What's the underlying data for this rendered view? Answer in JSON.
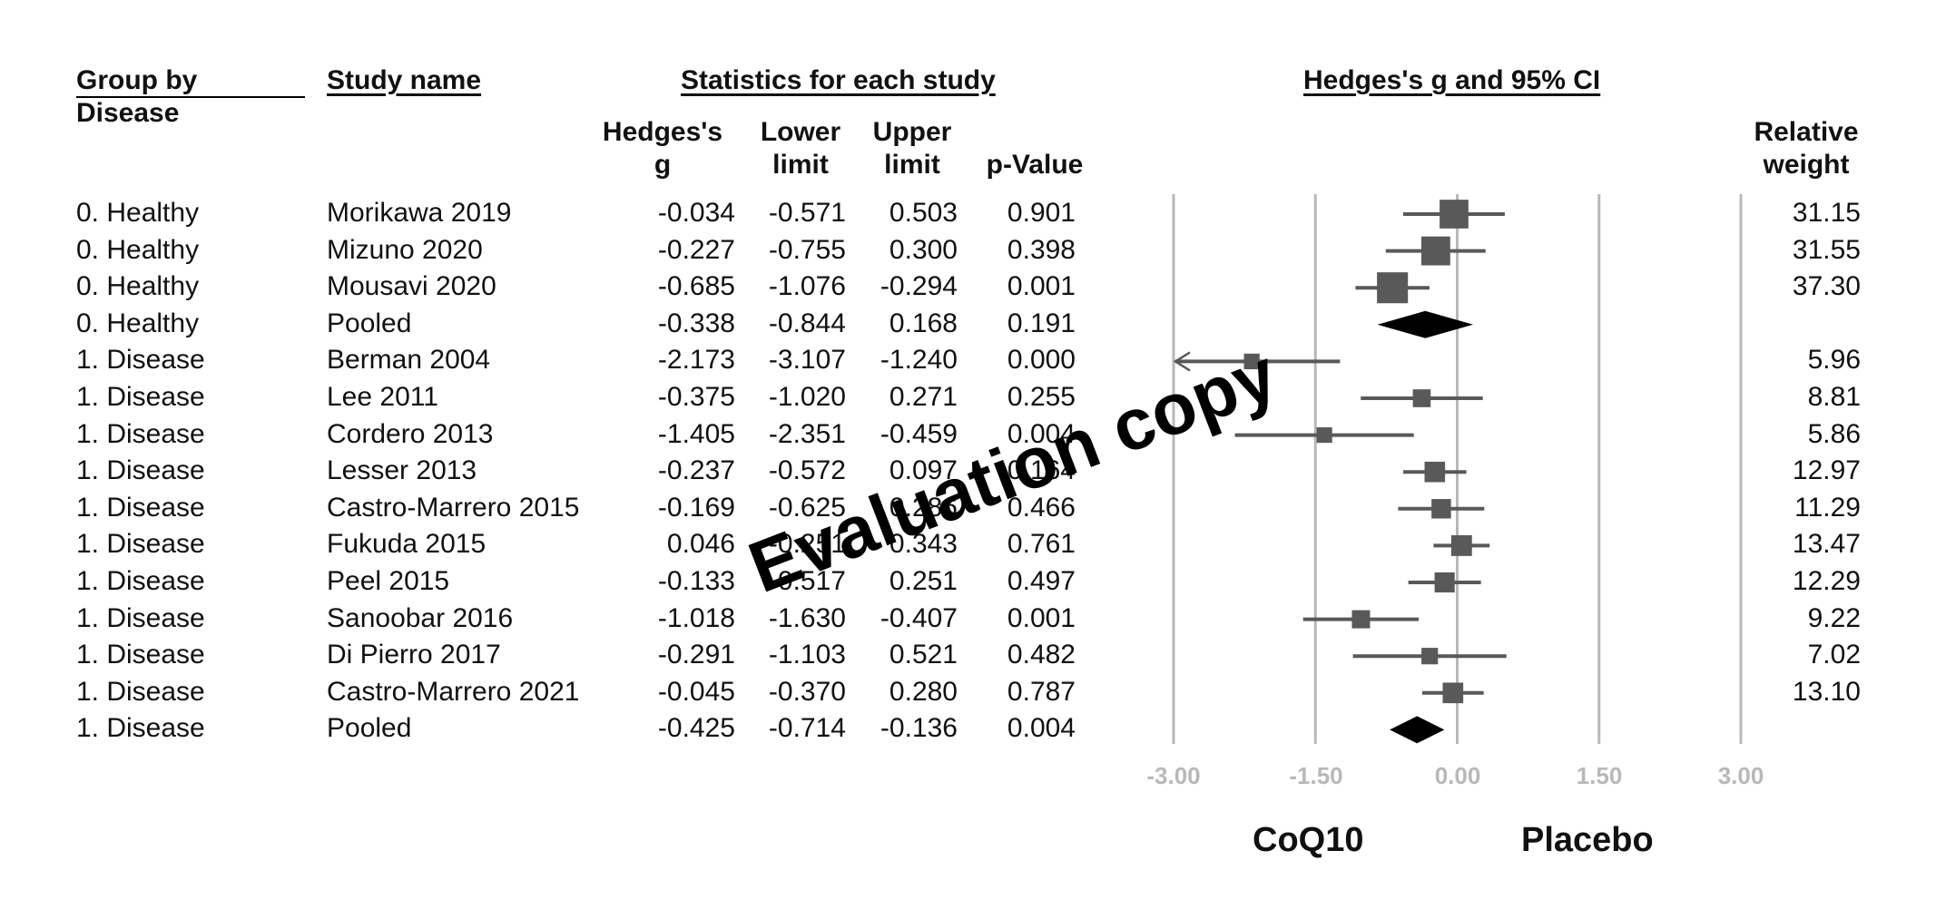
{
  "headers": {
    "group_by": "Group by",
    "group_by_sub": "Disease",
    "study_name": "Study name",
    "statistics": "Statistics for each study",
    "ci": "Hedges's g and 95% CI",
    "col_g": "Hedges's g",
    "col_lower": "Lower limit",
    "col_upper": "Upper limit",
    "col_p": "p-Value",
    "col_weight": "Relative weight"
  },
  "rows": [
    {
      "group": "0. Healthy",
      "study": "Morikawa 2019",
      "g": "-0.034",
      "lower": "-0.571",
      "upper": "0.503",
      "p": "0.901",
      "weight": "31.15"
    },
    {
      "group": "0. Healthy",
      "study": "Mizuno 2020",
      "g": "-0.227",
      "lower": "-0.755",
      "upper": "0.300",
      "p": "0.398",
      "weight": "31.55"
    },
    {
      "group": "0. Healthy",
      "study": "Mousavi 2020",
      "g": "-0.685",
      "lower": "-1.076",
      "upper": "-0.294",
      "p": "0.001",
      "weight": "37.30"
    },
    {
      "group": "0. Healthy",
      "study": "Pooled",
      "g": "-0.338",
      "lower": "-0.844",
      "upper": "0.168",
      "p": "0.191",
      "weight": ""
    },
    {
      "group": "1. Disease",
      "study": "Berman 2004",
      "g": "-2.173",
      "lower": "-3.107",
      "upper": "-1.240",
      "p": "0.000",
      "weight": "5.96"
    },
    {
      "group": "1. Disease",
      "study": "Lee 2011",
      "g": "-0.375",
      "lower": "-1.020",
      "upper": "0.271",
      "p": "0.255",
      "weight": "8.81"
    },
    {
      "group": "1. Disease",
      "study": "Cordero 2013",
      "g": "-1.405",
      "lower": "-2.351",
      "upper": "-0.459",
      "p": "0.004",
      "weight": "5.86"
    },
    {
      "group": "1. Disease",
      "study": "Lesser 2013",
      "g": "-0.237",
      "lower": "-0.572",
      "upper": "0.097",
      "p": "0.164",
      "weight": "12.97"
    },
    {
      "group": "1. Disease",
      "study": "Castro-Marrero 2015",
      "g": "-0.169",
      "lower": "-0.625",
      "upper": "0.286",
      "p": "0.466",
      "weight": "11.29"
    },
    {
      "group": "1. Disease",
      "study": "Fukuda 2015",
      "g": "0.046",
      "lower": "-0.251",
      "upper": "0.343",
      "p": "0.761",
      "weight": "13.47"
    },
    {
      "group": "1. Disease",
      "study": "Peel 2015",
      "g": "-0.133",
      "lower": "-0.517",
      "upper": "0.251",
      "p": "0.497",
      "weight": "12.29"
    },
    {
      "group": "1. Disease",
      "study": "Sanoobar 2016",
      "g": "-1.018",
      "lower": "-1.630",
      "upper": "-0.407",
      "p": "0.001",
      "weight": "9.22"
    },
    {
      "group": "1. Disease",
      "study": "Di Pierro 2017",
      "g": "-0.291",
      "lower": "-1.103",
      "upper": "0.521",
      "p": "0.482",
      "weight": "7.02"
    },
    {
      "group": "1. Disease",
      "study": "Castro-Marrero 2021",
      "g": "-0.045",
      "lower": "-0.370",
      "upper": "0.280",
      "p": "0.787",
      "weight": "13.10"
    },
    {
      "group": "1. Disease",
      "study": "Pooled",
      "g": "-0.425",
      "lower": "-0.714",
      "upper": "-0.136",
      "p": "0.004",
      "weight": ""
    }
  ],
  "axis": {
    "ticks": [
      "-3.00",
      "-1.50",
      "0.00",
      "1.50",
      "3.00"
    ],
    "left_label": "CoQ10",
    "right_label": "Placebo"
  },
  "watermark": "Evaluation copy",
  "colors": {
    "marker": "#595959",
    "pooled": "#000000",
    "gridline": "#b8b8b8",
    "tick_text": "#b8b8b8"
  },
  "chart_data": {
    "type": "forest",
    "title": "Hedges's g and 95% CI",
    "xlim": [
      -3.0,
      3.0
    ],
    "xticks": [
      -3.0,
      -1.5,
      0.0,
      1.5,
      3.0
    ],
    "grid": true,
    "studies": [
      {
        "group": "0. Healthy",
        "name": "Morikawa 2019",
        "g": -0.034,
        "lower": -0.571,
        "upper": 0.503,
        "weight": 31.15,
        "pooled": false
      },
      {
        "group": "0. Healthy",
        "name": "Mizuno 2020",
        "g": -0.227,
        "lower": -0.755,
        "upper": 0.3,
        "weight": 31.55,
        "pooled": false
      },
      {
        "group": "0. Healthy",
        "name": "Mousavi 2020",
        "g": -0.685,
        "lower": -1.076,
        "upper": -0.294,
        "weight": 37.3,
        "pooled": false
      },
      {
        "group": "0. Healthy",
        "name": "Pooled",
        "g": -0.338,
        "lower": -0.844,
        "upper": 0.168,
        "weight": null,
        "pooled": true
      },
      {
        "group": "1. Disease",
        "name": "Berman 2004",
        "g": -2.173,
        "lower": -3.107,
        "upper": -1.24,
        "weight": 5.96,
        "pooled": false
      },
      {
        "group": "1. Disease",
        "name": "Lee 2011",
        "g": -0.375,
        "lower": -1.02,
        "upper": 0.271,
        "weight": 8.81,
        "pooled": false
      },
      {
        "group": "1. Disease",
        "name": "Cordero 2013",
        "g": -1.405,
        "lower": -2.351,
        "upper": -0.459,
        "weight": 5.86,
        "pooled": false
      },
      {
        "group": "1. Disease",
        "name": "Lesser 2013",
        "g": -0.237,
        "lower": -0.572,
        "upper": 0.097,
        "weight": 12.97,
        "pooled": false
      },
      {
        "group": "1. Disease",
        "name": "Castro-Marrero 2015",
        "g": -0.169,
        "lower": -0.625,
        "upper": 0.286,
        "weight": 11.29,
        "pooled": false
      },
      {
        "group": "1. Disease",
        "name": "Fukuda 2015",
        "g": 0.046,
        "lower": -0.251,
        "upper": 0.343,
        "weight": 13.47,
        "pooled": false
      },
      {
        "group": "1. Disease",
        "name": "Peel 2015",
        "g": -0.133,
        "lower": -0.517,
        "upper": 0.251,
        "weight": 12.29,
        "pooled": false
      },
      {
        "group": "1. Disease",
        "name": "Sanoobar 2016",
        "g": -1.018,
        "lower": -1.63,
        "upper": -0.407,
        "weight": 9.22,
        "pooled": false
      },
      {
        "group": "1. Disease",
        "name": "Di Pierro 2017",
        "g": -0.291,
        "lower": -1.103,
        "upper": 0.521,
        "weight": 7.02,
        "pooled": false
      },
      {
        "group": "1. Disease",
        "name": "Castro-Marrero 2021",
        "g": -0.045,
        "lower": -0.37,
        "upper": 0.28,
        "weight": 13.1,
        "pooled": false
      },
      {
        "group": "1. Disease",
        "name": "Pooled",
        "g": -0.425,
        "lower": -0.714,
        "upper": -0.136,
        "weight": null,
        "pooled": true
      }
    ]
  }
}
